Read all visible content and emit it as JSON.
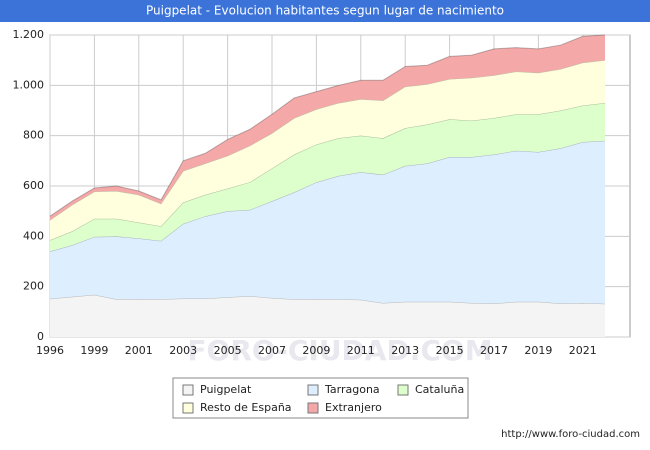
{
  "chart_data": {
    "type": "stacked-area",
    "title": "Puigpelat - Evolucion habitantes segun lugar de nacimiento",
    "watermark": "FORO-CIUDAD.COM",
    "source": "http://www.foro-ciudad.com",
    "categories": [
      1996,
      null,
      1999,
      null,
      2001,
      null,
      2003,
      null,
      2005,
      null,
      2007,
      null,
      2009,
      null,
      2011,
      null,
      2013,
      null,
      2015,
      null,
      2017,
      null,
      2019,
      null,
      2021,
      null
    ],
    "ylim": [
      0,
      1200
    ],
    "yticks": [
      0,
      200,
      400,
      600,
      800,
      {
        "value": 1000,
        "label": "1.000"
      },
      {
        "value": 1200,
        "label": "1.200"
      }
    ],
    "grid": true,
    "series": [
      {
        "name": "Puigpelat",
        "color": "#f4f4f4",
        "values": [
          152,
          160,
          168,
          150,
          150,
          150,
          153,
          153,
          158,
          163,
          155,
          150,
          150,
          150,
          148,
          135,
          140,
          140,
          140,
          135,
          133,
          140,
          140,
          133,
          135,
          132
        ]
      },
      {
        "name": "Tarragona",
        "color": "#ddeeff",
        "values": [
          188,
          205,
          230,
          250,
          242,
          232,
          297,
          327,
          342,
          342,
          385,
          425,
          465,
          490,
          507,
          510,
          540,
          550,
          575,
          580,
          592,
          600,
          595,
          617,
          640,
          648
        ]
      },
      {
        "name": "Cataluña",
        "color": "#ddffcc",
        "values": [
          45,
          55,
          72,
          70,
          63,
          58,
          85,
          85,
          90,
          110,
          130,
          150,
          150,
          150,
          145,
          145,
          150,
          155,
          150,
          145,
          145,
          145,
          150,
          150,
          145,
          150
        ]
      },
      {
        "name": "Resto de España",
        "color": "#ffffdd",
        "values": [
          80,
          105,
          108,
          110,
          110,
          90,
          125,
          125,
          130,
          145,
          140,
          145,
          140,
          140,
          145,
          150,
          165,
          160,
          160,
          170,
          170,
          170,
          165,
          165,
          170,
          170
        ]
      },
      {
        "name": "Extranjero",
        "color": "#f4a8a8",
        "values": [
          15,
          15,
          14,
          20,
          15,
          15,
          40,
          40,
          65,
          65,
          75,
          80,
          70,
          70,
          75,
          80,
          80,
          75,
          90,
          90,
          105,
          95,
          95,
          95,
          105,
          100
        ]
      }
    ]
  }
}
